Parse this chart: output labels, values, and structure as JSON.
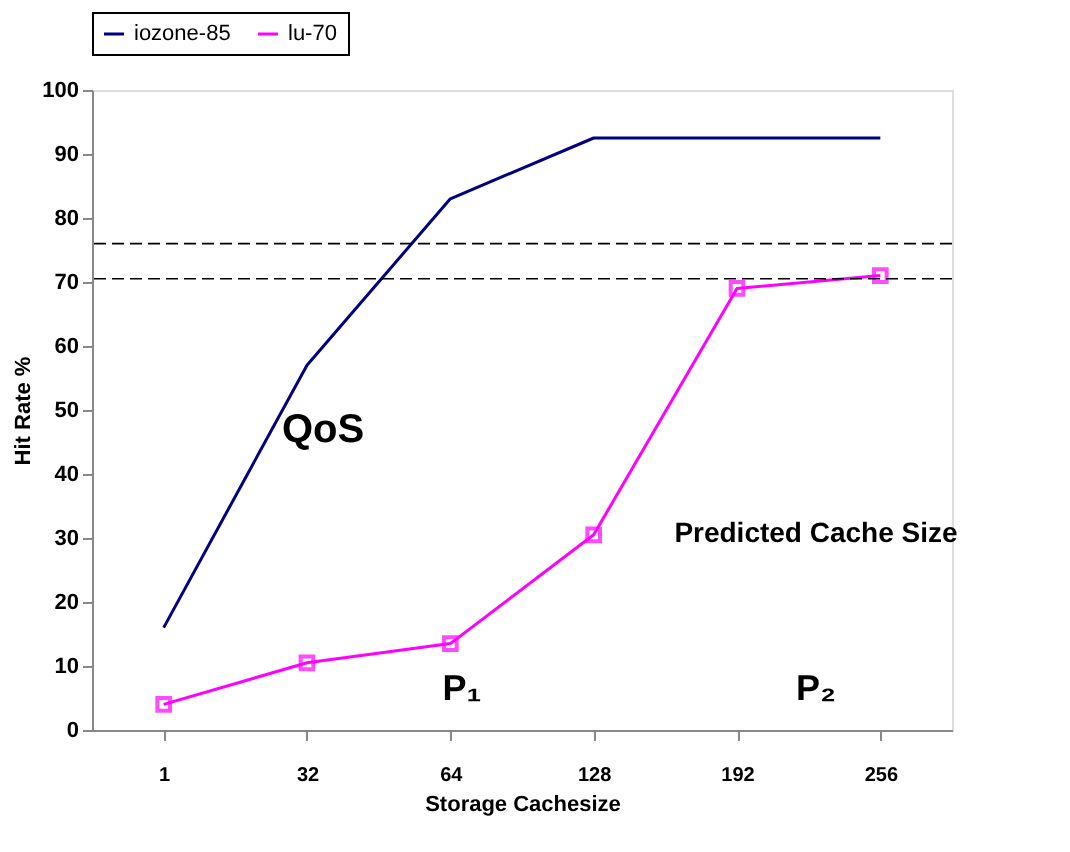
{
  "chart_data": {
    "type": "line",
    "xlabel": "Storage Cachesize",
    "ylabel": "Hit Rate %",
    "categories": [
      "1",
      "32",
      "64",
      "128",
      "192",
      "256"
    ],
    "series": [
      {
        "name": "iozone-85",
        "color": "#000080",
        "values": [
          16,
          57,
          83,
          92.5,
          92.5,
          92.5
        ],
        "marker": "none"
      },
      {
        "name": "lu-70",
        "color": "#ff00ff",
        "values": [
          4,
          10.5,
          13.5,
          30.5,
          69,
          71
        ],
        "marker": "square"
      }
    ],
    "ylim": [
      0,
      100
    ],
    "yticks": [
      0,
      10,
      20,
      30,
      40,
      50,
      60,
      70,
      80,
      90,
      100
    ],
    "grid": false,
    "legend": "top",
    "ref_lines": [
      {
        "axis": "y",
        "value": 76,
        "line_style": "dashed",
        "color": "#000000"
      },
      {
        "axis": "y",
        "value": 70.5,
        "line_style": "dashed",
        "color": "#000000"
      }
    ],
    "annotations": [
      "QoS",
      "Predicted Cache Size",
      "P₁",
      "P₂"
    ]
  }
}
